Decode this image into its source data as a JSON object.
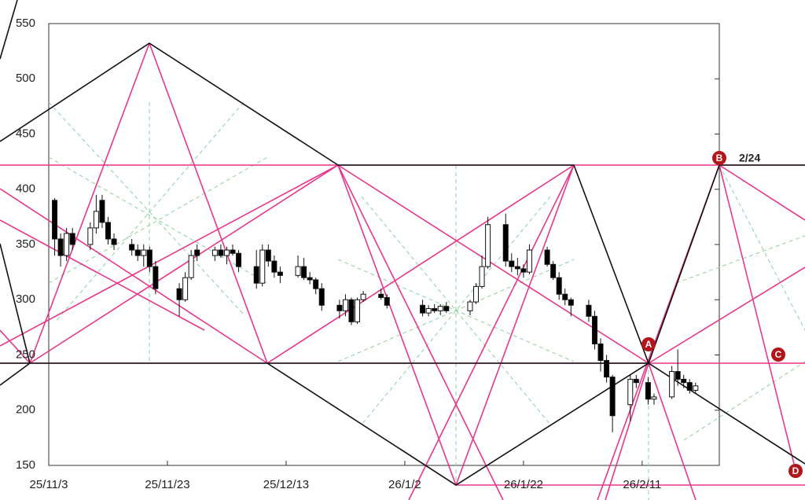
{
  "chart_data": {
    "type": "candlestick",
    "x": [
      "25/11/4",
      "25/11/5",
      "25/11/6",
      "25/11/7",
      "25/11/10",
      "25/11/11",
      "25/11/12",
      "25/11/13",
      "25/11/14",
      "25/11/17",
      "25/11/18",
      "25/11/19",
      "25/11/20",
      "25/11/21",
      "25/11/25",
      "25/11/26",
      "25/11/27",
      "25/11/28",
      "25/12/1",
      "25/12/2",
      "25/12/3",
      "25/12/4",
      "25/12/5",
      "25/12/8",
      "25/12/9",
      "25/12/10",
      "25/12/11",
      "25/12/12",
      "25/12/15",
      "25/12/16",
      "25/12/17",
      "25/12/18",
      "25/12/19",
      "25/12/22",
      "25/12/23",
      "25/12/24",
      "25/12/25",
      "25/12/26",
      "25/12/29",
      "25/12/30",
      "26/1/5",
      "26/1/6",
      "26/1/7",
      "26/1/8",
      "26/1/9",
      "26/1/13",
      "26/1/14",
      "26/1/15",
      "26/1/16",
      "26/1/19",
      "26/1/20",
      "26/1/21",
      "26/1/22",
      "26/1/23",
      "26/1/26",
      "26/1/27",
      "26/1/28",
      "26/1/29",
      "26/1/30",
      "26/2/2",
      "26/2/3",
      "26/2/4",
      "26/2/5",
      "26/2/6",
      "26/2/9",
      "26/2/10",
      "26/2/12",
      "26/2/13",
      "26/2/16",
      "26/2/17",
      "26/2/18",
      "26/2/19",
      "26/2/20"
    ],
    "open": [
      390,
      355,
      340,
      360,
      350,
      365,
      390,
      370,
      355,
      350,
      345,
      340,
      345,
      330,
      310,
      300,
      320,
      345,
      340,
      345,
      340,
      345,
      342,
      330,
      315,
      345,
      335,
      325,
      322,
      330,
      320,
      318,
      310,
      295,
      290,
      300,
      280,
      300,
      305,
      302,
      295,
      288,
      292,
      290,
      294,
      290,
      298,
      312,
      330,
      368,
      335,
      330,
      328,
      325,
      345,
      332,
      320,
      305,
      300,
      295,
      285,
      260,
      245,
      230,
      205,
      228,
      225,
      210,
      212,
      235,
      228,
      225,
      218
    ],
    "high": [
      392,
      360,
      365,
      365,
      370,
      395,
      395,
      375,
      360,
      355,
      350,
      350,
      348,
      335,
      315,
      325,
      345,
      350,
      348,
      350,
      348,
      350,
      345,
      345,
      350,
      350,
      340,
      330,
      340,
      338,
      325,
      320,
      315,
      300,
      305,
      302,
      302,
      308,
      310,
      305,
      300,
      295,
      296,
      296,
      298,
      300,
      315,
      340,
      375,
      378,
      342,
      338,
      332,
      350,
      348,
      335,
      325,
      310,
      302,
      300,
      290,
      265,
      250,
      232,
      232,
      232,
      230,
      215,
      240,
      255,
      232,
      228,
      225
    ],
    "low": [
      340,
      330,
      335,
      345,
      345,
      360,
      365,
      350,
      345,
      340,
      335,
      330,
      325,
      305,
      285,
      298,
      318,
      335,
      335,
      338,
      332,
      340,
      325,
      310,
      312,
      330,
      320,
      315,
      320,
      318,
      314,
      305,
      290,
      283,
      285,
      277,
      278,
      298,
      300,
      292,
      285,
      285,
      288,
      286,
      288,
      286,
      296,
      310,
      328,
      330,
      325,
      322,
      320,
      323,
      330,
      318,
      300,
      295,
      285,
      280,
      255,
      235,
      225,
      180,
      190,
      220,
      205,
      205,
      210,
      222,
      220,
      215,
      215
    ],
    "close": [
      355,
      340,
      360,
      350,
      365,
      380,
      370,
      355,
      350,
      345,
      340,
      345,
      330,
      310,
      300,
      320,
      340,
      340,
      345,
      340,
      345,
      342,
      330,
      315,
      345,
      335,
      325,
      322,
      330,
      320,
      318,
      310,
      295,
      290,
      300,
      280,
      300,
      305,
      302,
      295,
      288,
      292,
      290,
      294,
      290,
      298,
      312,
      330,
      368,
      335,
      330,
      328,
      325,
      345,
      332,
      320,
      305,
      300,
      295,
      285,
      260,
      245,
      230,
      195,
      228,
      225,
      210,
      212,
      235,
      228,
      225,
      218,
      222
    ],
    "xlim": [
      "25/11/3",
      "26/2/24"
    ],
    "xticks": [
      "25/11/3",
      "25/11/23",
      "25/12/13",
      "26/1/2",
      "26/1/22",
      "26/2/11"
    ],
    "ylim": [
      150,
      550
    ],
    "yticks": [
      150,
      200,
      250,
      300,
      350,
      400,
      450,
      500,
      550
    ],
    "annotations": [
      "A",
      "B",
      "C",
      "D",
      "2/24"
    ]
  }
}
